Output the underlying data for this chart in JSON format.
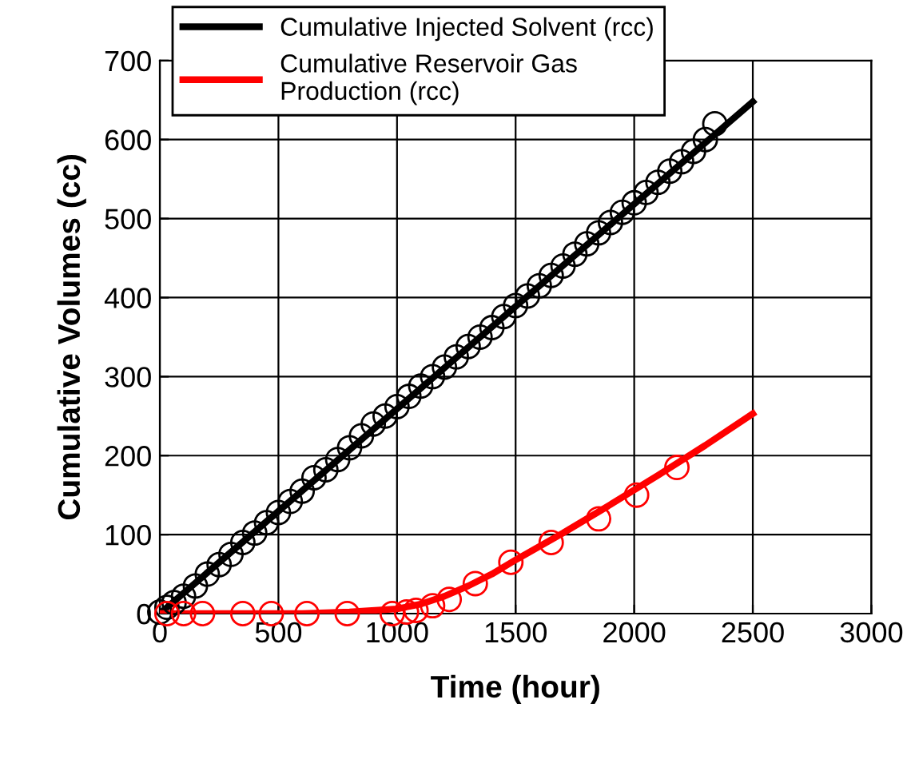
{
  "chart_data": {
    "type": "line",
    "xlabel": "Time (hour)",
    "ylabel": "Cumulative Volumes (cc)",
    "xlim": [
      0,
      3000
    ],
    "xticks": [
      0,
      500,
      1000,
      1500,
      2000,
      2500,
      3000
    ],
    "ylim": [
      0,
      700
    ],
    "yticks": [
      0,
      100,
      200,
      300,
      400,
      500,
      600,
      700
    ],
    "grid": true,
    "legend": "top left",
    "series": [
      {
        "type": "scatter",
        "marker": "circle",
        "color": "#000000",
        "x": [
          0,
          30,
          60,
          100,
          150,
          200,
          250,
          300,
          350,
          400,
          450,
          500,
          550,
          600,
          650,
          700,
          750,
          800,
          850,
          900,
          950,
          1000,
          1050,
          1100,
          1150,
          1200,
          1250,
          1300,
          1350,
          1400,
          1450,
          1500,
          1550,
          1600,
          1650,
          1700,
          1750,
          1800,
          1850,
          1900,
          1950,
          2000,
          2050,
          2100,
          2150,
          2200,
          2250,
          2300,
          2340
        ],
        "values": [
          2,
          8,
          14,
          22,
          35,
          50,
          62,
          75,
          90,
          102,
          115,
          128,
          142,
          155,
          172,
          182,
          195,
          210,
          225,
          240,
          250,
          262,
          275,
          288,
          300,
          312,
          325,
          338,
          350,
          362,
          376,
          390,
          402,
          415,
          428,
          440,
          455,
          468,
          482,
          495,
          508,
          520,
          533,
          546,
          560,
          572,
          585,
          600,
          620
        ]
      },
      {
        "type": "scatter",
        "marker": "circle",
        "color": "#ff0000",
        "x": [
          30,
          100,
          180,
          350,
          470,
          620,
          790,
          980,
          1040,
          1080,
          1150,
          1220,
          1330,
          1480,
          1650,
          1850,
          2010,
          2180
        ],
        "values": [
          0,
          0,
          0,
          0,
          0,
          0,
          0,
          0,
          2,
          4,
          10,
          18,
          38,
          65,
          90,
          120,
          150,
          185
        ]
      },
      {
        "name": "Cumulative Injected Solvent (rcc)",
        "marker": "none",
        "color": "#000000",
        "x": [
          0,
          2500
        ],
        "values": [
          0,
          648
        ]
      },
      {
        "name": "Cumulative Reservoir Gas Production (rcc)",
        "marker": "none",
        "color": "#ff0000",
        "x": [
          0,
          600,
          800,
          1000,
          1100,
          1200,
          1300,
          1400,
          1500,
          1700,
          1900,
          2100,
          2300,
          2500
        ],
        "values": [
          0,
          0,
          2,
          6,
          12,
          22,
          35,
          50,
          68,
          102,
          138,
          175,
          213,
          253
        ]
      }
    ]
  }
}
